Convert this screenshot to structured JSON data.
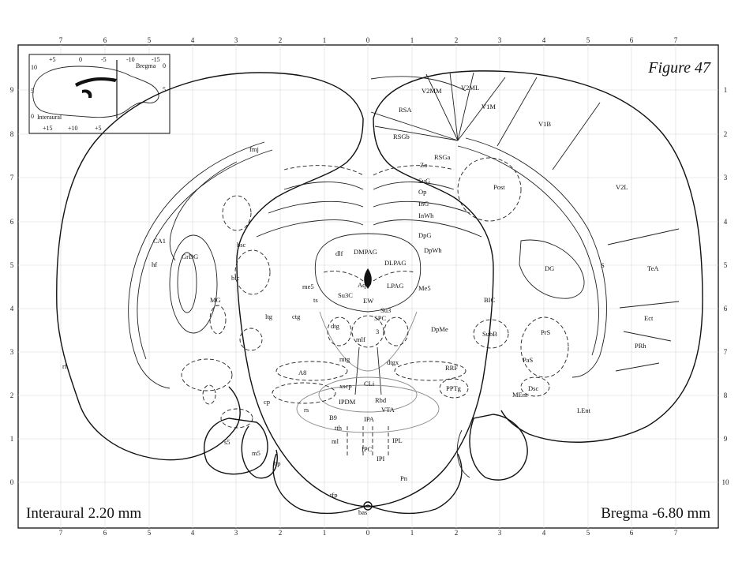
{
  "figure_title": "Figure 47",
  "interaural_label": "Interaural 2.20 mm",
  "bregma_label": "Bregma -6.80 mm",
  "scale": {
    "top": [
      "7",
      "6",
      "5",
      "4",
      "3",
      "2",
      "1",
      "0",
      "1",
      "2",
      "3",
      "4",
      "5",
      "6",
      "7"
    ],
    "bottom": [
      "7",
      "6",
      "5",
      "4",
      "3",
      "2",
      "1",
      "0",
      "1",
      "2",
      "3",
      "4",
      "5",
      "6",
      "7"
    ],
    "left": [
      "9",
      "8",
      "7",
      "6",
      "5",
      "4",
      "3",
      "2",
      "1",
      "0"
    ],
    "right": [
      "1",
      "2",
      "3",
      "4",
      "5",
      "6",
      "7",
      "8",
      "9",
      "10"
    ]
  },
  "inset": {
    "top_ticks": [
      "+5",
      "0",
      "-5",
      "-10",
      "-15"
    ],
    "bottom_ticks": [
      "+15",
      "+10",
      "+5"
    ],
    "left_ticks": [
      "10",
      "5",
      "0"
    ],
    "right_ticks": [
      "0",
      "5"
    ],
    "bregma": "Bregma",
    "interaural": "Interaural"
  },
  "regions": {
    "v2mm": "V2MM",
    "v2ml": "V2ML",
    "rsa": "RSA",
    "v1m": "V1M",
    "v1b": "V1B",
    "rsgb": "RSGb",
    "rsga": "RSGa",
    "zo": "Zo",
    "sug": "SuG",
    "op": "Op",
    "ing": "InG",
    "inwh": "InWh",
    "post": "Post",
    "v2l": "V2L",
    "fmj": "fmj",
    "dpg": "DpG",
    "dpwh": "DpWh",
    "ca1": "CA1",
    "hf": "hf",
    "grdg": "GrDG",
    "bsc": "bsc",
    "dlf": "dlf",
    "dmpag": "DMPAG",
    "dlpag": "DLPAG",
    "dg": "DG",
    "s": "S",
    "tea": "TeA",
    "bic": "bic",
    "aq": "Aq",
    "mg": "MG",
    "me5a": "me5",
    "lpag": "LPAG",
    "me5b": "Me5",
    "ts": "ts",
    "su3c": "Su3C",
    "ew": "EW",
    "bic2": "BIC",
    "ltg": "ltg",
    "ctg": "ctg",
    "su3": "Su3",
    "spc": "SPC",
    "dtg": "dtg",
    "dpme": "DpMe",
    "subb": "SubB",
    "ect": "Ect",
    "prs": "PrS",
    "mlf": "mlf",
    "n3": "3",
    "prh": "PRh",
    "rf": "rf",
    "mtg": "mtg",
    "dtgx": "dtgx",
    "pas": "PaS",
    "a8": "A8",
    "rrf": "RRF",
    "xscp": "xscp",
    "cli": "CLi",
    "pptg": "PPTg",
    "dsc": "Dsc",
    "ment": "MEnt",
    "cp": "cp",
    "ipdm": "IPDM",
    "rbd": "Rbd",
    "lent": "LEnt",
    "rs": "rs",
    "vta": "VTA",
    "b9": "B9",
    "ipa": "IPA",
    "tth": "tth",
    "s5": "s5",
    "ml": "ml",
    "ipl": "IPL",
    "m5": "m5",
    "ipc": "IPC",
    "ipi": "IPI",
    "bp": "bp",
    "pn": "Pn",
    "tfp": "tfp",
    "bas": "bas"
  }
}
